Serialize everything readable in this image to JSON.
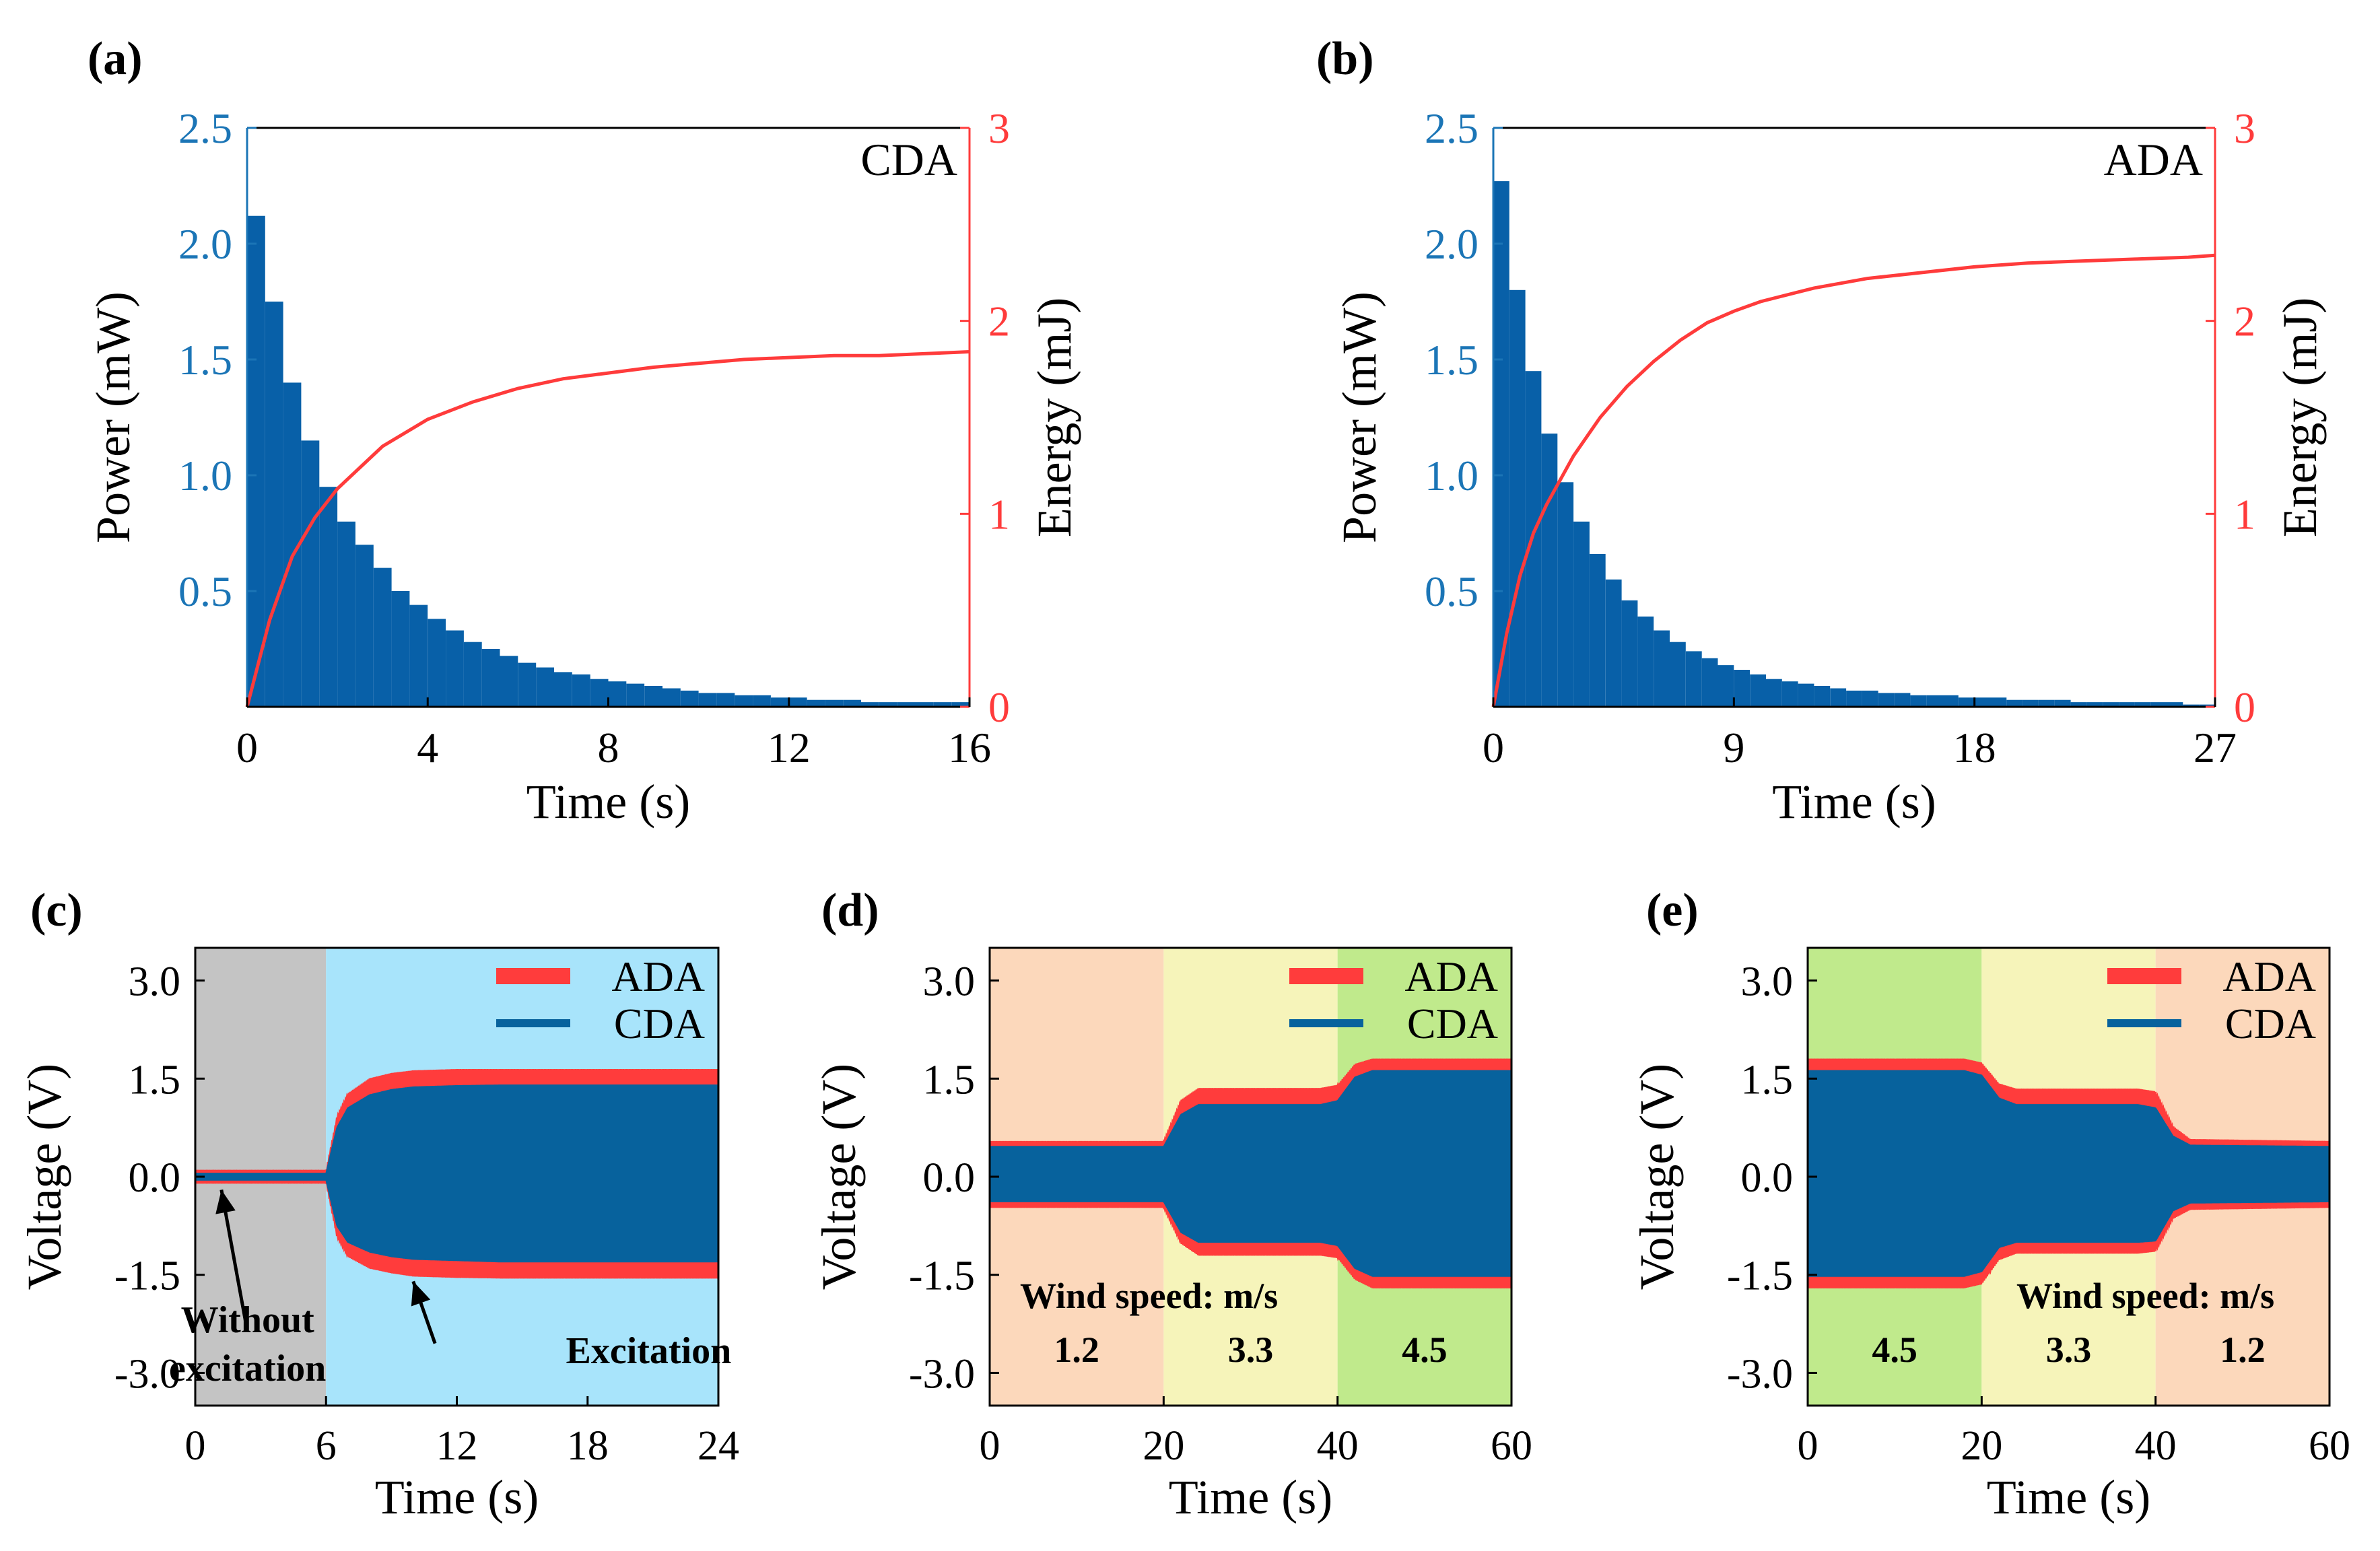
{
  "colors": {
    "power": "#0860a8",
    "energy": "#ff3b3b",
    "ada": "#ff3c3c",
    "cda": "#07629d",
    "axis_power": "#1b75b6",
    "axis_energy": "#ff3b3b",
    "gray_bg": "#c4c4c4",
    "blue_bg": "#a8e4fb",
    "orange_bg": "#fcd8bb",
    "yellow_bg": "#f6f4ba",
    "green_bg": "#c0ea8c"
  },
  "chart_data": [
    {
      "id": "a",
      "panel_label": "(a)",
      "type": "bar+line",
      "annotation": "CDA",
      "xlabel": "Time (s)",
      "ylabel_left": "Power (mW)",
      "ylabel_right": "Energy (mJ)",
      "xlim": [
        0,
        16
      ],
      "ylim_left": [
        0,
        2.5
      ],
      "ylim_right": [
        0,
        3
      ],
      "xticks": [
        "0",
        "4",
        "8",
        "12",
        "16"
      ],
      "xtick_values": [
        0,
        4,
        8,
        12,
        16
      ],
      "yticks_left": [
        "0.5",
        "1.0",
        "1.5",
        "2.0",
        "2.5"
      ],
      "ytick_values_left": [
        0.5,
        1.0,
        1.5,
        2.0,
        2.5
      ],
      "yticks_right": [
        "0",
        "1",
        "2",
        "3"
      ],
      "ytick_values_right": [
        0,
        1,
        2,
        3
      ],
      "power_series": {
        "name": "Power",
        "x": [
          0,
          0.4,
          0.8,
          1.2,
          1.6,
          2.0,
          2.4,
          2.8,
          3.2,
          3.6,
          4.0,
          4.4,
          4.8,
          5.2,
          5.6,
          6.0,
          6.4,
          6.8,
          7.2,
          7.6,
          8.0,
          8.4,
          8.8,
          9.2,
          9.6,
          10.0,
          10.4,
          10.8,
          11.2,
          11.6,
          12.0,
          12.4,
          12.8,
          13.2,
          13.6,
          14.0,
          14.4,
          14.8,
          15.2,
          15.6,
          16.0
        ],
        "values": [
          2.12,
          1.75,
          1.4,
          1.15,
          0.95,
          0.8,
          0.7,
          0.6,
          0.5,
          0.44,
          0.38,
          0.33,
          0.28,
          0.25,
          0.22,
          0.19,
          0.17,
          0.15,
          0.14,
          0.12,
          0.11,
          0.1,
          0.09,
          0.08,
          0.07,
          0.06,
          0.06,
          0.05,
          0.05,
          0.04,
          0.04,
          0.03,
          0.03,
          0.03,
          0.02,
          0.02,
          0.02,
          0.02,
          0.02,
          0.02,
          0.02
        ]
      },
      "energy_series": {
        "name": "Energy",
        "x": [
          0,
          0.5,
          1,
          1.5,
          2,
          3,
          4,
          5,
          6,
          7,
          8,
          9,
          10,
          11,
          12,
          13,
          14,
          15,
          16
        ],
        "values": [
          0,
          0.45,
          0.78,
          0.98,
          1.13,
          1.35,
          1.49,
          1.58,
          1.65,
          1.7,
          1.73,
          1.76,
          1.78,
          1.8,
          1.81,
          1.82,
          1.82,
          1.83,
          1.84
        ]
      }
    },
    {
      "id": "b",
      "panel_label": "(b)",
      "type": "bar+line",
      "annotation": "ADA",
      "xlabel": "Time (s)",
      "ylabel_left": "Power (mW)",
      "ylabel_right": "Energy (mJ)",
      "xlim": [
        0,
        27
      ],
      "ylim_left": [
        0,
        2.5
      ],
      "ylim_right": [
        0,
        3
      ],
      "xticks": [
        "0",
        "9",
        "18",
        "27"
      ],
      "xtick_values": [
        0,
        9,
        18,
        27
      ],
      "yticks_left": [
        "0.5",
        "1.0",
        "1.5",
        "2.0",
        "2.5"
      ],
      "ytick_values_left": [
        0.5,
        1.0,
        1.5,
        2.0,
        2.5
      ],
      "yticks_right": [
        "0",
        "1",
        "2",
        "3"
      ],
      "ytick_values_right": [
        0,
        1,
        2,
        3
      ],
      "power_series": {
        "name": "Power",
        "x": [
          0,
          0.6,
          1.2,
          1.8,
          2.4,
          3.0,
          3.6,
          4.2,
          4.8,
          5.4,
          6.0,
          6.6,
          7.2,
          7.8,
          8.4,
          9.0,
          9.6,
          10.2,
          10.8,
          11.4,
          12.0,
          12.6,
          13.2,
          13.8,
          14.4,
          15.0,
          15.6,
          16.2,
          16.8,
          17.4,
          18.0,
          18.6,
          19.2,
          19.8,
          20.4,
          21.0,
          21.6,
          22.2,
          22.8,
          23.4,
          24.0,
          24.6,
          25.2,
          25.8,
          26.4,
          27.0
        ],
        "values": [
          2.27,
          1.8,
          1.45,
          1.18,
          0.97,
          0.8,
          0.66,
          0.55,
          0.46,
          0.39,
          0.33,
          0.28,
          0.24,
          0.21,
          0.18,
          0.16,
          0.14,
          0.12,
          0.11,
          0.1,
          0.09,
          0.08,
          0.07,
          0.07,
          0.06,
          0.06,
          0.05,
          0.05,
          0.05,
          0.04,
          0.04,
          0.04,
          0.03,
          0.03,
          0.03,
          0.03,
          0.02,
          0.02,
          0.02,
          0.02,
          0.02,
          0.02,
          0.02,
          0.01,
          0.01,
          0.01
        ]
      },
      "energy_series": {
        "name": "Energy",
        "x": [
          0,
          0.5,
          1,
          1.5,
          2,
          3,
          4,
          5,
          6,
          7,
          8,
          9,
          10,
          12,
          14,
          16,
          18,
          20,
          22,
          24,
          26,
          27
        ],
        "values": [
          0,
          0.38,
          0.68,
          0.9,
          1.05,
          1.3,
          1.5,
          1.66,
          1.79,
          1.9,
          1.99,
          2.05,
          2.1,
          2.17,
          2.22,
          2.25,
          2.28,
          2.3,
          2.31,
          2.32,
          2.33,
          2.34
        ]
      }
    },
    {
      "id": "c",
      "panel_label": "(c)",
      "type": "area",
      "xlabel": "Time (s)",
      "ylabel": "Voltage (V)",
      "xlim": [
        0,
        24
      ],
      "ylim": [
        -3.5,
        3.5
      ],
      "xticks": [
        "0",
        "6",
        "12",
        "18",
        "24"
      ],
      "xtick_values": [
        0,
        6,
        12,
        18,
        24
      ],
      "yticks": [
        "3.0",
        "1.5",
        "0.0",
        "-1.5",
        "-3.0"
      ],
      "ytick_values": [
        3.0,
        1.5,
        0.0,
        -1.5,
        -3.0
      ],
      "legend": [
        "ADA",
        "CDA"
      ],
      "regions": [
        {
          "x0": 0,
          "x1": 6,
          "color_key": "gray_bg",
          "label": ""
        },
        {
          "x0": 6,
          "x1": 24,
          "color_key": "blue_bg",
          "label": ""
        }
      ],
      "series": [
        {
          "name": "ADA",
          "x": [
            0,
            6,
            6.5,
            7,
            8,
            9,
            10,
            12,
            14,
            24
          ],
          "upper": [
            0.08,
            0.08,
            0.9,
            1.25,
            1.48,
            1.56,
            1.6,
            1.62,
            1.62,
            1.62
          ],
          "lower": [
            -0.08,
            -0.08,
            -0.9,
            -1.2,
            -1.38,
            -1.45,
            -1.5,
            -1.52,
            -1.53,
            -1.53
          ]
        },
        {
          "name": "CDA",
          "x": [
            0,
            6,
            6.5,
            7,
            8,
            9,
            10,
            12,
            14,
            24
          ],
          "upper": [
            0.05,
            0.05,
            0.75,
            1.05,
            1.25,
            1.33,
            1.37,
            1.39,
            1.4,
            1.4
          ],
          "lower": [
            -0.05,
            -0.05,
            -0.75,
            -1.0,
            -1.15,
            -1.22,
            -1.26,
            -1.28,
            -1.3,
            -1.3
          ]
        }
      ],
      "annotations": [
        {
          "text_lines": [
            "Without",
            "excitation"
          ],
          "x": 2.4,
          "y": -2.75,
          "arrow_to": [
            1.2,
            -0.2
          ],
          "arrow_from": [
            2.3,
            -2.2
          ]
        },
        {
          "text_lines": [
            "Excitation"
          ],
          "x": 20.8,
          "y": -2.85,
          "arrow_to": [
            10,
            -1.6
          ],
          "arrow_from": [
            11.0,
            -2.55
          ]
        }
      ]
    },
    {
      "id": "d",
      "panel_label": "(d)",
      "type": "area",
      "xlabel": "Time (s)",
      "ylabel": "Voltage (V)",
      "xlim": [
        0,
        60
      ],
      "ylim": [
        -3.5,
        3.5
      ],
      "xticks": [
        "0",
        "20",
        "40",
        "60"
      ],
      "xtick_values": [
        0,
        20,
        40,
        60
      ],
      "yticks": [
        "3.0",
        "1.5",
        "0.0",
        "-1.5",
        "-3.0"
      ],
      "ytick_values": [
        3.0,
        1.5,
        0.0,
        -1.5,
        -3.0
      ],
      "legend": [
        "ADA",
        "CDA"
      ],
      "wind_title": "Wind speed: m/s",
      "regions": [
        {
          "x0": 0,
          "x1": 20,
          "color_key": "orange_bg",
          "label": "1.2"
        },
        {
          "x0": 20,
          "x1": 40,
          "color_key": "yellow_bg",
          "label": "3.3"
        },
        {
          "x0": 40,
          "x1": 60,
          "color_key": "green_bg",
          "label": "4.5"
        }
      ],
      "series": [
        {
          "name": "ADA",
          "x": [
            0,
            20,
            22,
            24,
            38,
            40,
            42,
            44,
            60
          ],
          "upper": [
            0.52,
            0.52,
            1.15,
            1.33,
            1.33,
            1.38,
            1.7,
            1.78,
            1.78
          ],
          "lower": [
            -0.45,
            -0.45,
            -1.0,
            -1.18,
            -1.18,
            -1.22,
            -1.55,
            -1.68,
            -1.68
          ]
        },
        {
          "name": "CDA",
          "x": [
            0,
            20,
            22,
            24,
            38,
            40,
            42,
            44,
            60
          ],
          "upper": [
            0.46,
            0.46,
            0.95,
            1.1,
            1.1,
            1.16,
            1.52,
            1.62,
            1.62
          ],
          "lower": [
            -0.38,
            -0.38,
            -0.85,
            -1.0,
            -1.0,
            -1.05,
            -1.4,
            -1.52,
            -1.52
          ]
        }
      ]
    },
    {
      "id": "e",
      "panel_label": "(e)",
      "type": "area",
      "xlabel": "Time (s)",
      "ylabel": "Voltage (V)",
      "xlim": [
        0,
        60
      ],
      "ylim": [
        -3.5,
        3.5
      ],
      "xticks": [
        "0",
        "20",
        "40",
        "60"
      ],
      "xtick_values": [
        0,
        20,
        40,
        60
      ],
      "yticks": [
        "3.0",
        "1.5",
        "0.0",
        "-1.5",
        "-3.0"
      ],
      "ytick_values": [
        3.0,
        1.5,
        0.0,
        -1.5,
        -3.0
      ],
      "legend": [
        "ADA",
        "CDA"
      ],
      "wind_title": "Wind speed: m/s",
      "regions": [
        {
          "x0": 0,
          "x1": 20,
          "color_key": "green_bg",
          "label": "4.5"
        },
        {
          "x0": 20,
          "x1": 40,
          "color_key": "yellow_bg",
          "label": "3.3"
        },
        {
          "x0": 40,
          "x1": 60,
          "color_key": "orange_bg",
          "label": "1.2"
        }
      ],
      "series": [
        {
          "name": "ADA",
          "x": [
            0,
            18,
            20,
            22,
            24,
            38,
            40,
            42,
            44,
            60
          ],
          "upper": [
            1.78,
            1.78,
            1.72,
            1.4,
            1.32,
            1.32,
            1.28,
            0.75,
            0.55,
            0.52
          ],
          "lower": [
            -1.68,
            -1.68,
            -1.62,
            -1.25,
            -1.15,
            -1.15,
            -1.12,
            -0.62,
            -0.48,
            -0.45
          ]
        },
        {
          "name": "CDA",
          "x": [
            0,
            18,
            20,
            22,
            24,
            38,
            40,
            42,
            44,
            60
          ],
          "upper": [
            1.62,
            1.62,
            1.55,
            1.2,
            1.1,
            1.1,
            1.05,
            0.62,
            0.48,
            0.46
          ],
          "lower": [
            -1.52,
            -1.52,
            -1.45,
            -1.08,
            -1.0,
            -1.0,
            -0.98,
            -0.52,
            -0.4,
            -0.38
          ]
        }
      ]
    }
  ]
}
